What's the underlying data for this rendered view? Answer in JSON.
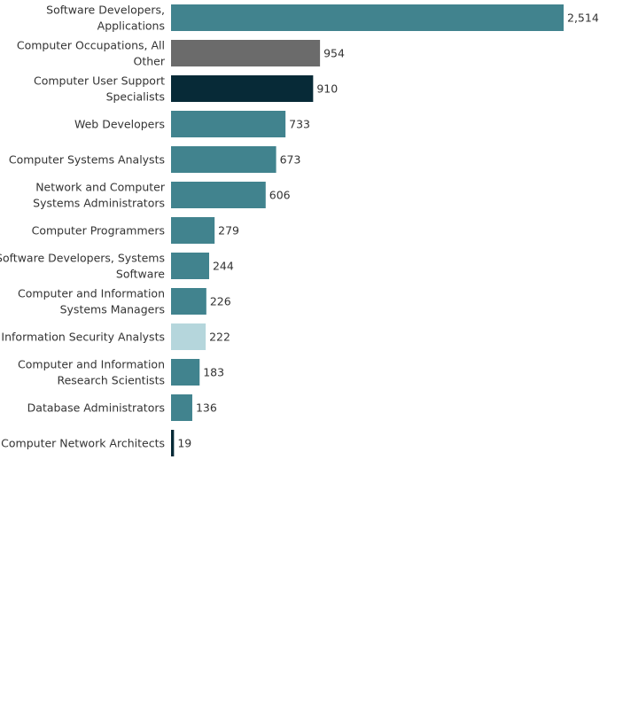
{
  "chart_data": {
    "type": "bar",
    "orientation": "horizontal",
    "categories": [
      [
        "Software Developers,",
        "Applications"
      ],
      [
        "Computer Occupations, All",
        "Other"
      ],
      [
        "Computer User Support",
        "Specialists"
      ],
      [
        "Web Developers"
      ],
      [
        "Computer Systems Analysts"
      ],
      [
        "Network and Computer",
        "Systems Administrators"
      ],
      [
        "Computer Programmers"
      ],
      [
        "Software Developers, Systems",
        "Software"
      ],
      [
        "Computer and Information",
        "Systems Managers"
      ],
      [
        "Information Security Analysts"
      ],
      [
        "Computer and Information",
        "Research Scientists"
      ],
      [
        "Database Administrators"
      ],
      [
        "Computer Network Architects"
      ]
    ],
    "values": [
      2514,
      954,
      910,
      733,
      673,
      606,
      279,
      244,
      226,
      222,
      183,
      136,
      19
    ],
    "value_labels": [
      "2,514",
      "954",
      "910",
      "733",
      "673",
      "606",
      "279",
      "244",
      "226",
      "222",
      "183",
      "136",
      "19"
    ],
    "colors": [
      "#41838e",
      "#6b6b6b",
      "#072a37",
      "#41838e",
      "#41838e",
      "#41838e",
      "#41838e",
      "#41838e",
      "#41838e",
      "#b5d6dc",
      "#41838e",
      "#41838e",
      "#072a37"
    ],
    "xlim": [
      0,
      2514
    ],
    "grid": false,
    "legend": "none"
  }
}
